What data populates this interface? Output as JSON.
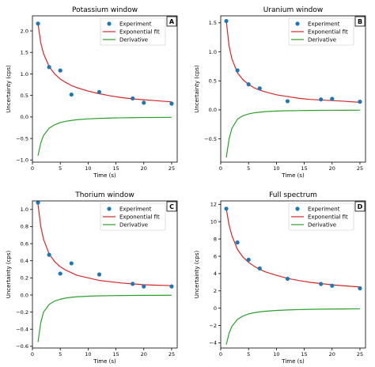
{
  "chart_data": [
    {
      "type": "line",
      "title": "Potassium window",
      "panel_label": "A",
      "xlabel": "Time (s)",
      "ylabel": "Uncertainty (cps)",
      "xlim": [
        0,
        26
      ],
      "ylim": [
        -1.05,
        2.35
      ],
      "xticks": [
        0,
        5,
        10,
        15,
        20,
        25
      ],
      "yticks": [
        -1.0,
        -0.5,
        0.0,
        0.5,
        1.0,
        1.5,
        2.0
      ],
      "ytick_labels": [
        "−1.0",
        "−0.5",
        "0.0",
        "0.5",
        "1.0",
        "1.5",
        "2.0"
      ],
      "legend_position": "top-right",
      "series": [
        {
          "name": "Experiment",
          "kind": "scatter",
          "color": "#1f77b4",
          "x": [
            1,
            3,
            5,
            7,
            12,
            18,
            20,
            25
          ],
          "y": [
            2.17,
            1.16,
            1.08,
            0.52,
            0.58,
            0.43,
            0.33,
            0.31
          ]
        },
        {
          "name": "Exponential fit",
          "kind": "line",
          "color": "#d62728",
          "x": [
            1,
            1.5,
            2,
            3,
            4,
            5,
            6,
            7,
            8,
            10,
            12,
            14,
            16,
            18,
            20,
            22,
            25
          ],
          "y": [
            2.17,
            1.72,
            1.47,
            1.17,
            1.0,
            0.88,
            0.8,
            0.73,
            0.68,
            0.6,
            0.54,
            0.49,
            0.45,
            0.42,
            0.4,
            0.38,
            0.35
          ]
        },
        {
          "name": "Derivative",
          "kind": "line",
          "color": "#2ca02c",
          "x": [
            1,
            1.5,
            2,
            3,
            4,
            5,
            6,
            7,
            8,
            10,
            12,
            14,
            16,
            18,
            20,
            22,
            25
          ],
          "y": [
            -0.9,
            -0.6,
            -0.43,
            -0.26,
            -0.18,
            -0.13,
            -0.1,
            -0.08,
            -0.065,
            -0.045,
            -0.033,
            -0.025,
            -0.02,
            -0.016,
            -0.013,
            -0.011,
            -0.008
          ]
        }
      ]
    },
    {
      "type": "line",
      "title": "Uranium window",
      "panel_label": "B",
      "xlabel": "Time (s)",
      "ylabel": "Uncertainty (cps)",
      "xlim": [
        0,
        26
      ],
      "ylim": [
        -0.9,
        1.62
      ],
      "xticks": [
        0,
        5,
        10,
        15,
        20,
        25
      ],
      "yticks": [
        -0.5,
        0.0,
        0.5,
        1.0,
        1.5
      ],
      "ytick_labels": [
        "−0.5",
        "0.0",
        "0.5",
        "1.0",
        "1.5"
      ],
      "legend_position": "top-right",
      "series": [
        {
          "name": "Experiment",
          "kind": "scatter",
          "color": "#1f77b4",
          "x": [
            1,
            3,
            5,
            7,
            12,
            18,
            20,
            25
          ],
          "y": [
            1.53,
            0.68,
            0.44,
            0.37,
            0.15,
            0.18,
            0.19,
            0.14
          ]
        },
        {
          "name": "Exponential fit",
          "kind": "line",
          "color": "#d62728",
          "x": [
            1,
            1.5,
            2,
            3,
            4,
            5,
            6,
            7,
            8,
            10,
            12,
            14,
            16,
            18,
            20,
            22,
            25
          ],
          "y": [
            1.53,
            1.1,
            0.88,
            0.64,
            0.52,
            0.44,
            0.38,
            0.34,
            0.31,
            0.26,
            0.23,
            0.2,
            0.18,
            0.17,
            0.16,
            0.15,
            0.13
          ]
        },
        {
          "name": "Derivative",
          "kind": "line",
          "color": "#2ca02c",
          "x": [
            1,
            1.5,
            2,
            3,
            4,
            5,
            6,
            7,
            8,
            10,
            12,
            14,
            16,
            18,
            20,
            22,
            25
          ],
          "y": [
            -0.82,
            -0.5,
            -0.32,
            -0.16,
            -0.1,
            -0.07,
            -0.05,
            -0.04,
            -0.03,
            -0.02,
            -0.015,
            -0.012,
            -0.01,
            -0.008,
            -0.007,
            -0.006,
            -0.005
          ]
        }
      ]
    },
    {
      "type": "line",
      "title": "Thorium window",
      "panel_label": "C",
      "xlabel": "Time (s)",
      "ylabel": "Uncertainty (cps)",
      "xlim": [
        0,
        26
      ],
      "ylim": [
        -0.62,
        1.1
      ],
      "xticks": [
        0,
        5,
        10,
        15,
        20,
        25
      ],
      "yticks": [
        -0.6,
        -0.4,
        -0.2,
        0.0,
        0.2,
        0.4,
        0.6,
        0.8,
        1.0
      ],
      "ytick_labels": [
        "−0.6",
        "−0.4",
        "−0.2",
        "0.0",
        "0.2",
        "0.4",
        "0.6",
        "0.8",
        "1.0"
      ],
      "legend_position": "top-right",
      "series": [
        {
          "name": "Experiment",
          "kind": "scatter",
          "color": "#1f77b4",
          "x": [
            1,
            3,
            5,
            7,
            12,
            18,
            20,
            25
          ],
          "y": [
            1.08,
            0.47,
            0.25,
            0.37,
            0.24,
            0.13,
            0.1,
            0.1
          ]
        },
        {
          "name": "Exponential fit",
          "kind": "line",
          "color": "#d62728",
          "x": [
            1,
            1.5,
            2,
            3,
            4,
            5,
            6,
            7,
            8,
            10,
            12,
            14,
            16,
            18,
            20,
            22,
            25
          ],
          "y": [
            1.06,
            0.8,
            0.65,
            0.48,
            0.39,
            0.33,
            0.29,
            0.26,
            0.23,
            0.2,
            0.17,
            0.155,
            0.14,
            0.13,
            0.12,
            0.115,
            0.11
          ]
        },
        {
          "name": "Derivative",
          "kind": "line",
          "color": "#2ca02c",
          "x": [
            1,
            1.5,
            2,
            3,
            4,
            5,
            6,
            7,
            8,
            10,
            12,
            14,
            16,
            18,
            20,
            22,
            25
          ],
          "y": [
            -0.55,
            -0.32,
            -0.2,
            -0.11,
            -0.07,
            -0.05,
            -0.035,
            -0.027,
            -0.021,
            -0.014,
            -0.01,
            -0.008,
            -0.006,
            -0.005,
            -0.004,
            -0.004,
            -0.003
          ]
        }
      ]
    },
    {
      "type": "line",
      "title": "Full spectrum",
      "panel_label": "D",
      "xlabel": "Time (s)",
      "ylabel": "Uncertainty (cps)",
      "xlim": [
        0,
        26
      ],
      "ylim": [
        -4.6,
        12.4
      ],
      "xticks": [
        0,
        5,
        10,
        15,
        20,
        25
      ],
      "yticks": [
        -4,
        -2,
        0,
        2,
        4,
        6,
        8,
        10,
        12
      ],
      "ytick_labels": [
        "−4",
        "−2",
        "0",
        "2",
        "4",
        "6",
        "8",
        "10",
        "12"
      ],
      "legend_position": "top-right",
      "series": [
        {
          "name": "Experiment",
          "kind": "scatter",
          "color": "#1f77b4",
          "x": [
            1,
            3,
            5,
            7,
            12,
            18,
            20,
            25
          ],
          "y": [
            11.5,
            7.6,
            5.6,
            4.6,
            3.4,
            2.8,
            2.6,
            2.3
          ]
        },
        {
          "name": "Exponential fit",
          "kind": "line",
          "color": "#d62728",
          "x": [
            1,
            1.5,
            2,
            3,
            4,
            5,
            6,
            7,
            8,
            10,
            12,
            14,
            16,
            18,
            20,
            22,
            25
          ],
          "y": [
            11.5,
            9.6,
            8.4,
            6.8,
            5.9,
            5.3,
            4.85,
            4.5,
            4.2,
            3.8,
            3.45,
            3.2,
            3.0,
            2.85,
            2.7,
            2.6,
            2.45
          ]
        },
        {
          "name": "Derivative",
          "kind": "line",
          "color": "#2ca02c",
          "x": [
            1,
            1.5,
            2,
            3,
            4,
            5,
            6,
            7,
            8,
            10,
            12,
            14,
            16,
            18,
            20,
            22,
            25
          ],
          "y": [
            -4.2,
            -2.9,
            -2.1,
            -1.3,
            -0.9,
            -0.66,
            -0.52,
            -0.42,
            -0.35,
            -0.26,
            -0.2,
            -0.16,
            -0.13,
            -0.11,
            -0.1,
            -0.09,
            -0.07
          ]
        }
      ]
    }
  ]
}
